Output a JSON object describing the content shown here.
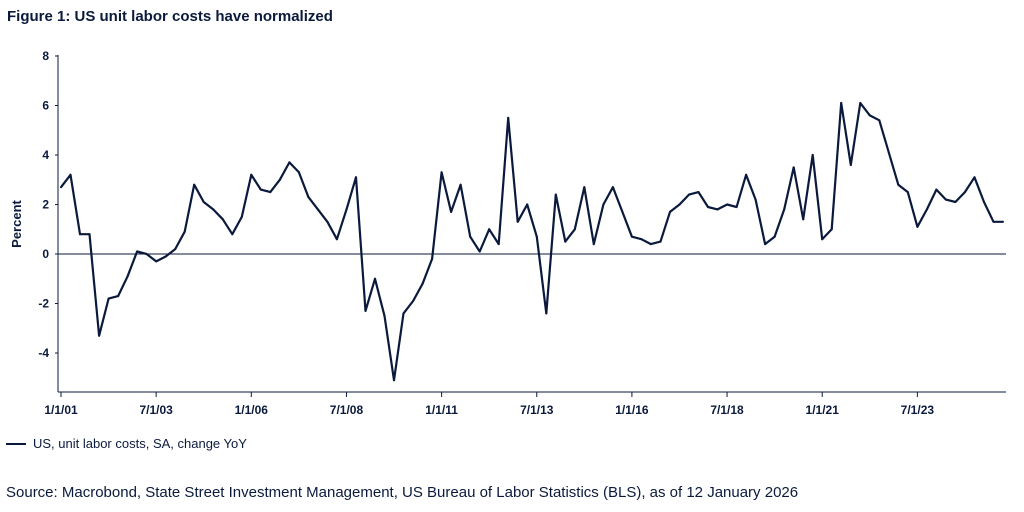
{
  "chart_data": {
    "type": "line",
    "title": "Figure 1: US unit labor costs have normalized",
    "xlabel": "",
    "ylabel": "Percent",
    "ylim": [
      -5.5,
      8
    ],
    "yticks": [
      8,
      6,
      4,
      2,
      0,
      -2,
      -4
    ],
    "xtick_labels": [
      "1/1/01",
      "7/1/03",
      "1/1/06",
      "7/1/08",
      "1/1/11",
      "7/1/13",
      "1/1/16",
      "7/1/18",
      "1/1/21",
      "7/1/23"
    ],
    "xtick_years": [
      2001.0,
      2003.5,
      2006.0,
      2008.5,
      2011.0,
      2013.5,
      2016.0,
      2018.5,
      2021.0,
      2023.5
    ],
    "xlim": [
      2001.0,
      2025.75
    ],
    "zero_line": true,
    "legend": "US, unit labor costs, SA, change YoY",
    "series": [
      {
        "name": "US, unit labor costs, SA, change YoY",
        "color": "#0b1a3c",
        "x": [
          2001.0,
          2001.25,
          2001.5,
          2001.75,
          2002.0,
          2002.25,
          2002.5,
          2002.75,
          2003.0,
          2003.25,
          2003.5,
          2003.75,
          2004.0,
          2004.25,
          2004.5,
          2004.75,
          2005.0,
          2005.25,
          2005.5,
          2005.75,
          2006.0,
          2006.25,
          2006.5,
          2006.75,
          2007.0,
          2007.25,
          2007.5,
          2007.75,
          2008.0,
          2008.25,
          2008.5,
          2008.75,
          2009.0,
          2009.25,
          2009.5,
          2009.75,
          2010.0,
          2010.25,
          2010.5,
          2010.75,
          2011.0,
          2011.25,
          2011.5,
          2011.75,
          2012.0,
          2012.25,
          2012.5,
          2012.75,
          2013.0,
          2013.25,
          2013.5,
          2013.75,
          2014.0,
          2014.25,
          2014.5,
          2014.75,
          2015.0,
          2015.25,
          2015.5,
          2015.75,
          2016.0,
          2016.25,
          2016.5,
          2016.75,
          2017.0,
          2017.25,
          2017.5,
          2017.75,
          2018.0,
          2018.25,
          2018.5,
          2018.75,
          2019.0,
          2019.25,
          2019.5,
          2019.75,
          2020.0,
          2020.25,
          2020.5,
          2020.75,
          2021.0,
          2021.25,
          2021.5,
          2021.75,
          2022.0,
          2022.25,
          2022.5,
          2022.75,
          2023.0,
          2023.25,
          2023.5,
          2023.75,
          2024.0,
          2024.25,
          2024.5,
          2024.75,
          2025.0,
          2025.25,
          2025.5,
          2025.75
        ],
        "values": [
          2.7,
          3.2,
          0.8,
          0.8,
          -3.3,
          -1.8,
          -1.7,
          -0.9,
          0.1,
          0.0,
          -0.3,
          -0.1,
          0.2,
          0.9,
          2.8,
          2.1,
          1.8,
          1.4,
          0.8,
          1.5,
          3.2,
          2.6,
          2.5,
          3.0,
          3.7,
          3.3,
          2.3,
          1.8,
          1.3,
          0.6,
          1.8,
          3.1,
          -2.3,
          -1.0,
          -2.5,
          -5.1,
          -2.4,
          -1.9,
          -1.2,
          -0.2,
          3.3,
          1.7,
          2.8,
          0.7,
          0.1,
          1.0,
          0.4,
          5.5,
          1.3,
          2.0,
          0.7,
          -2.4,
          2.4,
          0.5,
          1.0,
          2.7,
          0.4,
          2.0,
          2.7,
          1.7,
          0.7,
          0.6,
          0.4,
          0.5,
          1.7,
          2.0,
          2.4,
          2.5,
          1.9,
          1.8,
          2.0,
          1.9,
          3.2,
          2.2,
          0.4,
          0.7,
          1.8,
          3.5,
          1.4,
          4.0,
          0.6,
          1.0,
          6.1,
          3.6,
          6.1,
          5.6,
          5.4,
          4.1,
          2.8,
          2.5,
          1.1,
          1.8,
          2.6,
          2.2,
          2.1,
          2.5,
          3.1,
          2.1,
          1.3,
          1.3
        ]
      }
    ]
  },
  "source_text": "Source: Macrobond, State Street Investment Management, US Bureau of Labor Statistics (BLS), as of 12 January 2026"
}
